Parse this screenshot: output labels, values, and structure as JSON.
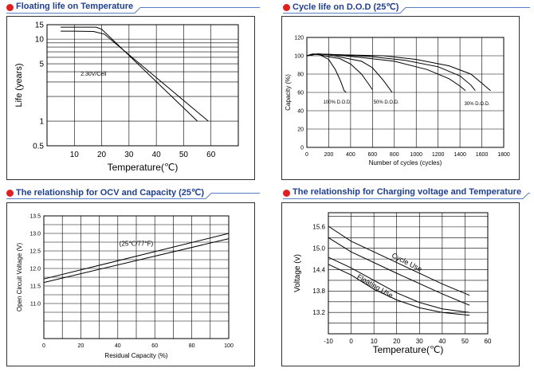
{
  "colors": {
    "accent": "#e02020",
    "title": "#1f3f8f",
    "rule": "#5b7fc4"
  },
  "panels": {
    "floating": {
      "title": "Floating life on Temperature"
    },
    "cycle": {
      "title": "Cycle life on D.O.D (25℃)"
    },
    "ocv": {
      "title": "The relationship  for OCV and Capacity (25℃)"
    },
    "charging": {
      "title": "The relationship for Charging voltage and Temperature"
    }
  },
  "chart_data": [
    {
      "type": "line",
      "title": "Floating life on Temperature",
      "xlabel": "Temperature(℃)",
      "ylabel": "Life (years)",
      "yscale": "log",
      "xlim": [
        0,
        70
      ],
      "ylim": [
        0.5,
        15
      ],
      "x_ticks": [
        "10",
        "20",
        "30",
        "40",
        "50",
        "60"
      ],
      "y_ticks": [
        "15",
        "10",
        "5",
        "1",
        "0.5"
      ],
      "annotations": [
        "2.30V/Cell"
      ],
      "series": [
        {
          "x": [
            5,
            18,
            20,
            55
          ],
          "y": [
            14,
            14,
            13.2,
            1
          ]
        },
        {
          "x": [
            5,
            10,
            17,
            21,
            59
          ],
          "y": [
            12.5,
            12.5,
            12.4,
            11.5,
            1
          ]
        }
      ]
    },
    {
      "type": "line",
      "title": "Cycle life on D.O.D (25℃)",
      "xlabel": "Number of cycles (cycles)",
      "ylabel": "Capacity  (%)",
      "xlim": [
        0,
        1800
      ],
      "ylim": [
        0,
        120
      ],
      "x_ticks": [
        "0",
        "200",
        "400",
        "600",
        "800",
        "1000",
        "1200",
        "1400",
        "1600",
        "1800"
      ],
      "y_ticks": [
        "0",
        "20",
        "40",
        "60",
        "80",
        "100",
        "120"
      ],
      "annotations": [
        "100% D.O.D.",
        "50% D.O.D.",
        "30% D.O.D."
      ],
      "series": [
        {
          "x": [
            0,
            50,
            120,
            200,
            260,
            310,
            340,
            360
          ],
          "y": [
            100,
            102,
            101,
            96,
            85,
            72,
            62,
            60
          ]
        },
        {
          "x": [
            0,
            60,
            120,
            200,
            300,
            400,
            500,
            560,
            600
          ],
          "y": [
            100,
            102,
            101,
            99,
            97,
            91,
            80,
            70,
            63
          ]
        },
        {
          "x": [
            0,
            80,
            200,
            500,
            600,
            700,
            750,
            780
          ],
          "y": [
            100,
            102,
            101,
            94,
            87,
            73,
            65,
            60
          ]
        },
        {
          "x": [
            0,
            100,
            250,
            500,
            800,
            1100,
            1300,
            1400,
            1450
          ],
          "y": [
            100,
            102,
            101,
            98,
            94,
            85,
            75,
            67,
            62
          ]
        },
        {
          "x": [
            0,
            100,
            300,
            600,
            900,
            1200,
            1400,
            1500,
            1540
          ],
          "y": [
            100,
            102,
            101,
            99,
            95,
            88,
            78,
            68,
            62
          ]
        },
        {
          "x": [
            0,
            100,
            300,
            700,
            1000,
            1300,
            1500,
            1600,
            1680
          ],
          "y": [
            100,
            102,
            101,
            100,
            96,
            89,
            80,
            70,
            62
          ]
        }
      ]
    },
    {
      "type": "line",
      "title": "The relationship  for OCV and Capacity (25℃)",
      "xlabel": "Residual Capacity (%)",
      "ylabel": "Open Circuit Voltage (V)",
      "xlim": [
        0,
        100
      ],
      "ylim": [
        10,
        13.5
      ],
      "x_ticks": [
        "0",
        "20",
        "40",
        "60",
        "80",
        "100"
      ],
      "y_ticks": [
        "11.0",
        "11.5",
        "12.0",
        "12.5",
        "13.0",
        "13.5"
      ],
      "annotations": [
        "(25℃/77°F)"
      ],
      "series": [
        {
          "x": [
            0,
            100
          ],
          "y": [
            11.7,
            13.0
          ]
        },
        {
          "x": [
            0,
            100
          ],
          "y": [
            11.6,
            12.85
          ]
        }
      ]
    },
    {
      "type": "line",
      "title": "The relationship for Charging voltage and Temperature",
      "xlabel": "Temperature(℃)",
      "ylabel": "Voltage (v)",
      "xlim": [
        -10,
        60
      ],
      "ylim": [
        12.6,
        16
      ],
      "x_ticks": [
        "-10",
        "0",
        "10",
        "20",
        "30",
        "40",
        "50",
        "60"
      ],
      "y_ticks": [
        "15.6",
        "15.0",
        "14.4",
        "13.8",
        "13.2"
      ],
      "annotations": [
        "Cycle Use",
        "Floating Use"
      ],
      "series": [
        {
          "x": [
            -10,
            0,
            20,
            40,
            52
          ],
          "y": [
            15.62,
            15.2,
            14.6,
            14.0,
            13.68
          ]
        },
        {
          "x": [
            -10,
            0,
            20,
            40,
            52
          ],
          "y": [
            15.3,
            14.9,
            14.3,
            13.72,
            13.4
          ]
        },
        {
          "x": [
            -10,
            0,
            10,
            20,
            30,
            40,
            52
          ],
          "y": [
            14.75,
            14.45,
            14.1,
            13.75,
            13.48,
            13.3,
            13.2
          ]
        },
        {
          "x": [
            -10,
            0,
            10,
            20,
            30,
            40,
            52
          ],
          "y": [
            14.55,
            14.25,
            13.85,
            13.55,
            13.33,
            13.2,
            13.12
          ]
        }
      ]
    }
  ]
}
